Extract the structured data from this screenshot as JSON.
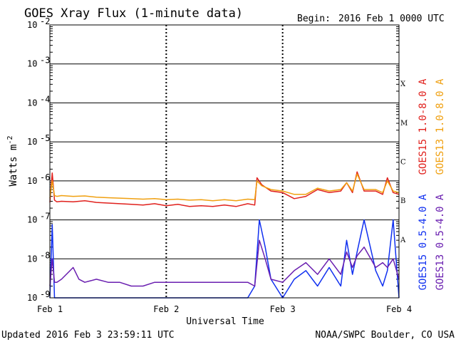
{
  "header": {
    "title": "GOES Xray Flux (1-minute data)",
    "begin_label": "Begin:",
    "begin_value": "2016 Feb 1 0000 UTC"
  },
  "footer": {
    "updated": "Updated 2016 Feb  3 23:59:11 UTC",
    "credit": "NOAA/SWPC Boulder, CO USA"
  },
  "colors": {
    "goes15_long": "#e0201c",
    "goes13_long": "#f0a010",
    "goes15_short": "#1030f0",
    "goes13_short": "#6a1fb0",
    "grid": "#000000"
  },
  "chart_data": {
    "type": "line",
    "xlabel": "Universal Time",
    "ylabel_base": "Watts m",
    "ylabel_exp": "-2",
    "x_unit": "days since 2016 Feb 1 0000 UTC",
    "xlim": [
      0,
      3
    ],
    "x_ticks": [
      {
        "x": 0,
        "label": "Feb 1"
      },
      {
        "x": 1,
        "label": "Feb 2"
      },
      {
        "x": 2,
        "label": "Feb 3"
      },
      {
        "x": 3,
        "label": "Feb 4"
      }
    ],
    "y_scale": "log",
    "ylim": [
      1e-09,
      0.01
    ],
    "y_ticks": [
      {
        "exp": -2,
        "label": "10",
        "sup": "-2"
      },
      {
        "exp": -3,
        "label": "10",
        "sup": "-3"
      },
      {
        "exp": -4,
        "label": "10",
        "sup": "-4"
      },
      {
        "exp": -5,
        "label": "10",
        "sup": "-5"
      },
      {
        "exp": -6,
        "label": "10",
        "sup": "-6"
      },
      {
        "exp": -7,
        "label": "10",
        "sup": "-7"
      },
      {
        "exp": -8,
        "label": "10",
        "sup": "-8"
      },
      {
        "exp": -9,
        "label": "10",
        "sup": "-9"
      }
    ],
    "flare_classes": [
      {
        "label": "X",
        "exp": -3.5
      },
      {
        "label": "M",
        "exp": -4.5
      },
      {
        "label": "C",
        "exp": -5.5
      },
      {
        "label": "B",
        "exp": -6.5
      },
      {
        "label": "A",
        "exp": -7.5
      }
    ],
    "series": [
      {
        "name": "GOES15 1.0-8.0 A",
        "color": "#e0201c",
        "x": [
          0,
          0.02,
          0.04,
          0.06,
          0.1,
          0.2,
          0.3,
          0.4,
          0.5,
          0.6,
          0.7,
          0.8,
          0.9,
          1.0,
          1.1,
          1.2,
          1.3,
          1.4,
          1.5,
          1.6,
          1.7,
          1.76,
          1.78,
          1.82,
          1.9,
          2.0,
          2.1,
          2.2,
          2.3,
          2.4,
          2.5,
          2.55,
          2.6,
          2.64,
          2.7,
          2.8,
          2.86,
          2.9,
          2.95,
          3.0
        ],
        "y": [
          2.8e-07,
          1.6e-06,
          3.2e-07,
          2.9e-07,
          3e-07,
          2.9e-07,
          3.1e-07,
          2.8e-07,
          2.7e-07,
          2.6e-07,
          2.5e-07,
          2.4e-07,
          2.6e-07,
          2.3e-07,
          2.5e-07,
          2.2e-07,
          2.3e-07,
          2.2e-07,
          2.4e-07,
          2.2e-07,
          2.6e-07,
          2.4e-07,
          1.2e-06,
          8e-07,
          5.5e-07,
          5e-07,
          3.5e-07,
          4e-07,
          6e-07,
          5e-07,
          5.5e-07,
          9e-07,
          5e-07,
          1.7e-06,
          5.5e-07,
          5.5e-07,
          4.5e-07,
          1.2e-06,
          5e-07,
          4.5e-07
        ]
      },
      {
        "name": "GOES13 1.0-8.0 A",
        "color": "#f0a010",
        "x": [
          0,
          0.02,
          0.04,
          0.06,
          0.1,
          0.2,
          0.3,
          0.4,
          0.5,
          0.6,
          0.7,
          0.8,
          0.9,
          1.0,
          1.1,
          1.2,
          1.3,
          1.4,
          1.5,
          1.6,
          1.7,
          1.76,
          1.78,
          1.82,
          1.9,
          2.0,
          2.1,
          2.2,
          2.3,
          2.4,
          2.5,
          2.55,
          2.6,
          2.64,
          2.7,
          2.8,
          2.86,
          2.9,
          2.95,
          3.0
        ],
        "y": [
          3.6e-07,
          1e-06,
          4.2e-07,
          4e-07,
          4.2e-07,
          4e-07,
          4.1e-07,
          3.8e-07,
          3.7e-07,
          3.6e-07,
          3.5e-07,
          3.4e-07,
          3.5e-07,
          3.3e-07,
          3.4e-07,
          3.2e-07,
          3.3e-07,
          3.1e-07,
          3.3e-07,
          3.1e-07,
          3.4e-07,
          3.3e-07,
          1e-06,
          7.5e-07,
          6e-07,
          5.5e-07,
          4.5e-07,
          4.5e-07,
          6.5e-07,
          5.5e-07,
          6e-07,
          9e-07,
          5.5e-07,
          1.5e-06,
          6e-07,
          6e-07,
          5e-07,
          1e-06,
          5.5e-07,
          5e-07
        ]
      },
      {
        "name": "GOES15 0.5-4.0 A",
        "color": "#1030f0",
        "x": [
          0,
          0.02,
          0.04,
          0.06,
          0.1,
          0.2,
          0.25,
          0.3,
          0.4,
          0.5,
          0.6,
          0.7,
          0.8,
          0.9,
          1.0,
          1.2,
          1.4,
          1.6,
          1.7,
          1.76,
          1.8,
          1.85,
          1.9,
          2.0,
          2.1,
          2.2,
          2.3,
          2.4,
          2.5,
          2.55,
          2.6,
          2.64,
          2.7,
          2.8,
          2.86,
          2.9,
          2.95,
          3.0
        ],
        "y": [
          1e-09,
          7.5e-08,
          1e-09,
          1e-09,
          1e-09,
          1e-09,
          1e-09,
          1e-09,
          1e-09,
          1e-09,
          1e-09,
          1e-09,
          1e-09,
          1e-09,
          1e-09,
          1e-09,
          1e-09,
          1e-09,
          1e-09,
          2e-09,
          1e-07,
          2e-08,
          3e-09,
          1e-09,
          3e-09,
          5e-09,
          2e-09,
          6e-09,
          2e-09,
          3e-08,
          4e-09,
          1.5e-08,
          1e-07,
          5e-09,
          2e-09,
          5e-09,
          1e-07,
          1e-09
        ]
      },
      {
        "name": "GOES13 0.5-4.0 A",
        "color": "#6a1fb0",
        "x": [
          0,
          0.02,
          0.04,
          0.06,
          0.1,
          0.2,
          0.25,
          0.3,
          0.4,
          0.5,
          0.6,
          0.7,
          0.8,
          0.9,
          1.0,
          1.2,
          1.4,
          1.6,
          1.7,
          1.76,
          1.8,
          1.85,
          1.9,
          2.0,
          2.1,
          2.2,
          2.3,
          2.4,
          2.5,
          2.55,
          2.6,
          2.64,
          2.7,
          2.8,
          2.86,
          2.9,
          2.95,
          3.0
        ],
        "y": [
          2e-09,
          1e-08,
          2.5e-09,
          2.5e-09,
          3e-09,
          6e-09,
          3e-09,
          2.5e-09,
          3e-09,
          2.5e-09,
          2.5e-09,
          2e-09,
          2e-09,
          2.5e-09,
          2.5e-09,
          2.5e-09,
          2.5e-09,
          2.5e-09,
          2.5e-09,
          2e-09,
          3e-08,
          1e-08,
          3e-09,
          2.5e-09,
          5e-09,
          8e-09,
          4e-09,
          1e-08,
          4e-09,
          1.5e-08,
          6e-09,
          1.2e-08,
          2e-08,
          6e-09,
          8e-09,
          6e-09,
          1e-08,
          3e-09
        ]
      }
    ],
    "legend_placement": "right, vertical"
  }
}
